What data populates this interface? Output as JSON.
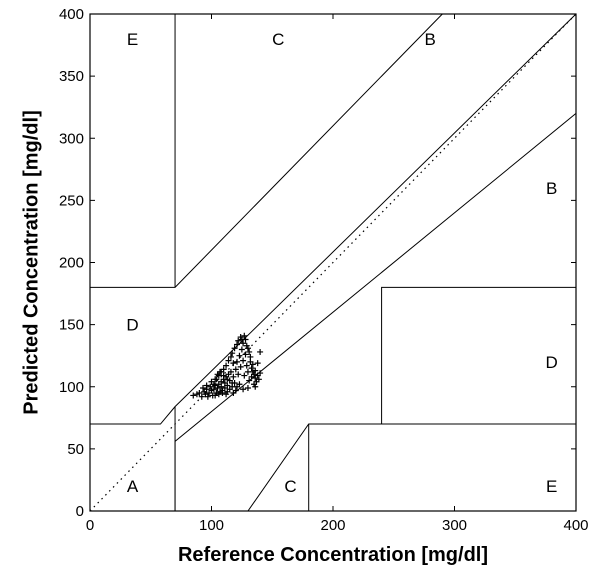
{
  "chart_data": {
    "type": "scatter",
    "title": "",
    "xlabel": "Reference Concentration [mg/dl]",
    "ylabel": "Predicted Concentration [mg/dl]",
    "xlim": [
      0,
      400
    ],
    "ylim": [
      0,
      400
    ],
    "xticks": [
      "0",
      "100",
      "200",
      "300",
      "400"
    ],
    "yticks": [
      "0",
      "50",
      "100",
      "150",
      "200",
      "250",
      "300",
      "350",
      "400"
    ],
    "grid": false,
    "identity_line": {
      "style": "dotted",
      "from": [
        0,
        0
      ],
      "to": [
        400,
        400
      ]
    },
    "zone_boundaries": [
      [
        [
          70,
          0
        ],
        [
          70,
          84
        ],
        [
          400,
          400
        ]
      ],
      [
        [
          130,
          0
        ],
        [
          180,
          70
        ],
        [
          400,
          70
        ]
      ],
      [
        [
          180,
          0
        ],
        [
          180,
          70
        ]
      ],
      [
        [
          70,
          0
        ],
        [
          70,
          56
        ],
        [
          400,
          320
        ]
      ],
      [
        [
          70,
          180
        ],
        [
          70,
          400
        ]
      ],
      [
        [
          0,
          70
        ],
        [
          58,
          70
        ],
        [
          70,
          84
        ]
      ],
      [
        [
          0,
          180
        ],
        [
          70,
          180
        ],
        [
          290,
          400
        ]
      ],
      [
        [
          240,
          70
        ],
        [
          240,
          180
        ],
        [
          400,
          180
        ]
      ]
    ],
    "zones": [
      {
        "label": "E",
        "x": 35,
        "y": 380
      },
      {
        "label": "C",
        "x": 155,
        "y": 380
      },
      {
        "label": "B",
        "x": 280,
        "y": 380
      },
      {
        "label": "B",
        "x": 380,
        "y": 260
      },
      {
        "label": "D",
        "x": 35,
        "y": 150
      },
      {
        "label": "D",
        "x": 380,
        "y": 120
      },
      {
        "label": "A",
        "x": 35,
        "y": 20
      },
      {
        "label": "C",
        "x": 165,
        "y": 20
      },
      {
        "label": "E",
        "x": 380,
        "y": 20
      }
    ],
    "series": [
      {
        "marker": "+",
        "points": [
          [
            85,
            93
          ],
          [
            88,
            94
          ],
          [
            90,
            95
          ],
          [
            92,
            92
          ],
          [
            94,
            96
          ],
          [
            95,
            94
          ],
          [
            96,
            98
          ],
          [
            97,
            92
          ],
          [
            98,
            95
          ],
          [
            99,
            100
          ],
          [
            100,
            97
          ],
          [
            100,
            104
          ],
          [
            101,
            93
          ],
          [
            102,
            98
          ],
          [
            103,
            101
          ],
          [
            103,
            106
          ],
          [
            104,
            95
          ],
          [
            105,
            99
          ],
          [
            105,
            110
          ],
          [
            106,
            102
          ],
          [
            107,
            96
          ],
          [
            107,
            112
          ],
          [
            108,
            104
          ],
          [
            108,
            100
          ],
          [
            109,
            97
          ],
          [
            110,
            106
          ],
          [
            110,
            114
          ],
          [
            111,
            99
          ],
          [
            111,
            103
          ],
          [
            112,
            108
          ],
          [
            112,
            117
          ],
          [
            113,
            101
          ],
          [
            113,
            96
          ],
          [
            114,
            110
          ],
          [
            114,
            121
          ],
          [
            115,
            98
          ],
          [
            115,
            105
          ],
          [
            116,
            124
          ],
          [
            116,
            112
          ],
          [
            117,
            100
          ],
          [
            117,
            127
          ],
          [
            118,
            108
          ],
          [
            118,
            119
          ],
          [
            119,
            131
          ],
          [
            119,
            103
          ],
          [
            120,
            114
          ],
          [
            120,
            97
          ],
          [
            121,
            134
          ],
          [
            121,
            120
          ],
          [
            122,
            110
          ],
          [
            122,
            137
          ],
          [
            123,
            125
          ],
          [
            123,
            102
          ],
          [
            124,
            140
          ],
          [
            124,
            116
          ],
          [
            125,
            138
          ],
          [
            125,
            130
          ],
          [
            126,
            135
          ],
          [
            126,
            121
          ],
          [
            127,
            141
          ],
          [
            127,
            109
          ],
          [
            128,
            138
          ],
          [
            128,
            126
          ],
          [
            129,
            133
          ],
          [
            129,
            117
          ],
          [
            130,
            131
          ],
          [
            130,
            112
          ],
          [
            131,
            128
          ],
          [
            131,
            105
          ],
          [
            132,
            124
          ],
          [
            132,
            120
          ],
          [
            133,
            115
          ],
          [
            133,
            108
          ],
          [
            134,
            118
          ],
          [
            134,
            112
          ],
          [
            135,
            110
          ],
          [
            135,
            102
          ],
          [
            136,
            107
          ],
          [
            136,
            113
          ],
          [
            137,
            104
          ],
          [
            138,
            109
          ],
          [
            138,
            119
          ],
          [
            139,
            106
          ],
          [
            140,
            111
          ],
          [
            140,
            128
          ],
          [
            136,
            100
          ],
          [
            130,
            99
          ],
          [
            126,
            98
          ],
          [
            121,
            100
          ],
          [
            117,
            103
          ],
          [
            113,
            106
          ],
          [
            110,
            109
          ],
          [
            108,
            112
          ],
          [
            106,
            109
          ],
          [
            104,
            106
          ],
          [
            102,
            102
          ],
          [
            118,
            95
          ],
          [
            112,
            94
          ],
          [
            109,
            95
          ],
          [
            106,
            94
          ],
          [
            103,
            93
          ],
          [
            96,
            101
          ],
          [
            93,
            99
          ]
        ]
      }
    ]
  }
}
